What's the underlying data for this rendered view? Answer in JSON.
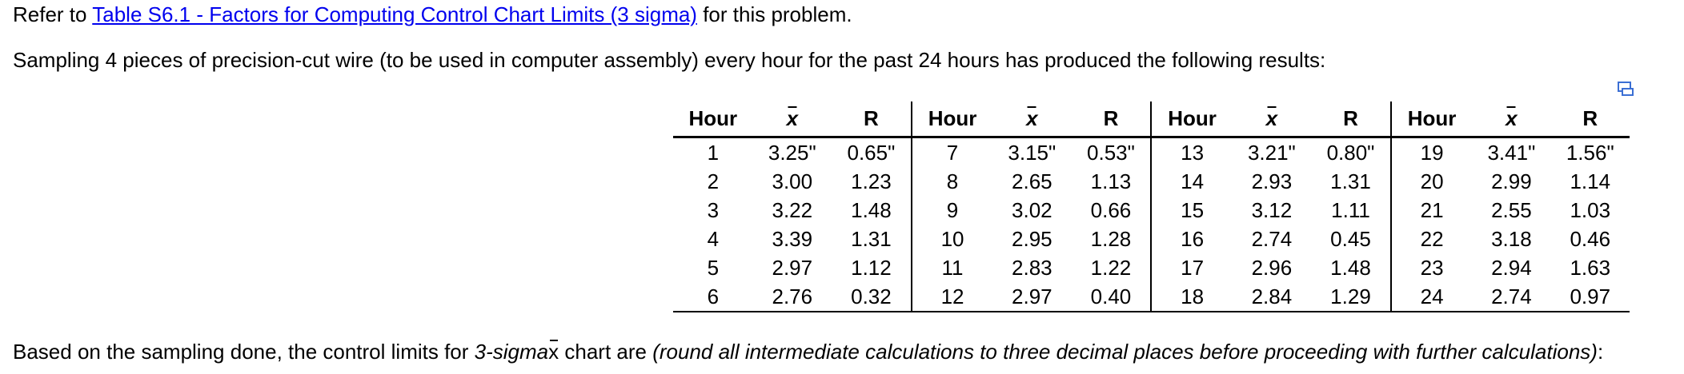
{
  "intro": {
    "prefix": "Refer to ",
    "link": "Table S6.1 - Factors for Computing Control Chart Limits (3 sigma)",
    "suffix": " for this problem."
  },
  "problem": "Sampling 4 pieces of precision-cut wire (to be used in computer assembly) every hour for the past 24 hours has produced the following results:",
  "table": {
    "headers": [
      "Hour",
      "x",
      "R"
    ],
    "rows": [
      [
        [
          "1",
          "3.25\"",
          "0.65\""
        ],
        [
          "7",
          "3.15\"",
          "0.53\""
        ],
        [
          "13",
          "3.21\"",
          "0.80\""
        ],
        [
          "19",
          "3.41\"",
          "1.56\""
        ]
      ],
      [
        [
          "2",
          "3.00",
          "1.23"
        ],
        [
          "8",
          "2.65",
          "1.13"
        ],
        [
          "14",
          "2.93",
          "1.31"
        ],
        [
          "20",
          "2.99",
          "1.14"
        ]
      ],
      [
        [
          "3",
          "3.22",
          "1.48"
        ],
        [
          "9",
          "3.02",
          "0.66"
        ],
        [
          "15",
          "3.12",
          "1.11"
        ],
        [
          "21",
          "2.55",
          "1.03"
        ]
      ],
      [
        [
          "4",
          "3.39",
          "1.31"
        ],
        [
          "10",
          "2.95",
          "1.28"
        ],
        [
          "16",
          "2.74",
          "0.45"
        ],
        [
          "22",
          "3.18",
          "0.46"
        ]
      ],
      [
        [
          "5",
          "2.97",
          "1.12"
        ],
        [
          "11",
          "2.83",
          "1.22"
        ],
        [
          "17",
          "2.96",
          "1.48"
        ],
        [
          "23",
          "2.94",
          "1.63"
        ]
      ],
      [
        [
          "6",
          "2.76",
          "0.32"
        ],
        [
          "12",
          "2.97",
          "0.40"
        ],
        [
          "18",
          "2.84",
          "1.29"
        ],
        [
          "24",
          "2.74",
          "0.97"
        ]
      ]
    ]
  },
  "question": {
    "part1": "Based on the sampling done, the control limits for ",
    "part2": "3-sigma",
    "part3": " x",
    "part4": " chart are ",
    "part5": "(round all intermediate calculations to three decimal places before proceeding with further calculations)",
    "part6": ":"
  },
  "icons": {
    "expand": "expand-table-icon"
  },
  "colors": {
    "link": "#0000ee",
    "expand_icon": "#3b6fd4"
  }
}
